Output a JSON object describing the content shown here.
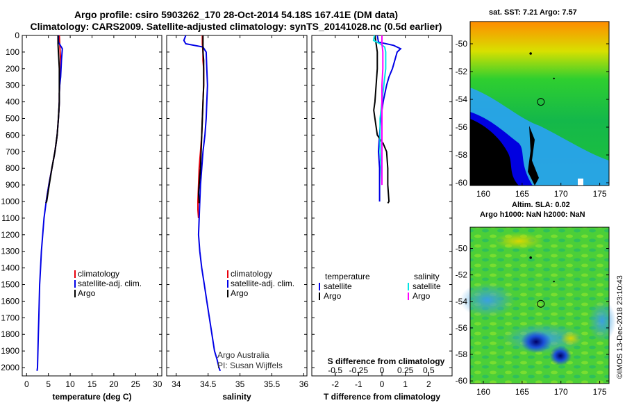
{
  "title_line1": "Argo profile: csiro 5903262_170 28-Oct-2014 54.18S 167.41E (DM data)",
  "title_line2": "Climatology: CARS2009. Satellite-adjusted climatology: synTS_20141028.nc (0.5d earlier)",
  "colors": {
    "climatology": "#e8000b",
    "satellite": "#0000e6",
    "argo": "#000000",
    "salinity_sat": "#00e5e5",
    "salinity_argo": "#ff00ff"
  },
  "chart_data": [
    {
      "type": "line",
      "xlabel": "temperature (deg C)",
      "xticks": [
        "0",
        "5",
        "10",
        "15",
        "20",
        "25",
        "30"
      ],
      "xlim": [
        -1,
        31
      ],
      "ylim": [
        0,
        2050
      ],
      "yticks": [
        "0",
        "100",
        "200",
        "300",
        "400",
        "500",
        "600",
        "700",
        "800",
        "900",
        "1000",
        "1100",
        "1200",
        "1300",
        "1400",
        "1500",
        "1600",
        "1700",
        "1800",
        "1900",
        "2000"
      ],
      "legend": [
        "climatology",
        "satellite-adj. clim.",
        "Argo"
      ],
      "series": [
        {
          "name": "climatology",
          "x": [
            7.5,
            7.6,
            7.7,
            7.8,
            7.8,
            7.7,
            7.6,
            7.5,
            7.5,
            7.4,
            7.3,
            7.0,
            6.5,
            5.8,
            5.1,
            4.5
          ],
          "y": [
            0,
            50,
            100,
            150,
            200,
            250,
            300,
            350,
            400,
            450,
            500,
            600,
            700,
            800,
            900,
            1000
          ]
        },
        {
          "name": "satellite-adj. clim.",
          "x": [
            7.3,
            7.3,
            8.2,
            8.0,
            7.9,
            7.8,
            7.6,
            7.5,
            7.5,
            7.4,
            7.3,
            7.0,
            6.5,
            5.8,
            5.1,
            4.5,
            4.0,
            3.7,
            3.4,
            3.2,
            3.0,
            2.9,
            2.8,
            2.7,
            2.6,
            2.5,
            2.4
          ],
          "y": [
            0,
            40,
            80,
            150,
            200,
            250,
            300,
            350,
            400,
            450,
            500,
            600,
            700,
            800,
            900,
            1000,
            1100,
            1200,
            1300,
            1400,
            1500,
            1600,
            1700,
            1800,
            1900,
            2000,
            2020
          ]
        },
        {
          "name": "Argo",
          "x": [
            7.2,
            7.2,
            7.3,
            7.4,
            7.5,
            7.5,
            7.5,
            7.5,
            7.5,
            7.4,
            7.3,
            7.0,
            6.5,
            5.8,
            5.2,
            4.6,
            4.4
          ],
          "y": [
            0,
            50,
            100,
            150,
            200,
            250,
            300,
            350,
            400,
            450,
            500,
            600,
            700,
            800,
            900,
            1000,
            1010
          ]
        }
      ]
    },
    {
      "type": "line",
      "xlabel": "salinity",
      "xticks": [
        "34",
        "34.5",
        "35",
        "35.5",
        "36"
      ],
      "xlim": [
        33.85,
        36.05
      ],
      "ylim": [
        0,
        2050
      ],
      "legend": [
        "climatology",
        "satellite-adj. clim.",
        "Argo"
      ],
      "note1": "Argo Australia",
      "note2": "PI: Susan Wijffels",
      "series": [
        {
          "name": "climatology",
          "x": [
            34.41,
            34.41,
            34.42,
            34.42,
            34.43,
            34.43,
            34.42,
            34.41,
            34.4,
            34.39,
            34.38,
            34.37,
            34.36,
            34.35,
            34.34,
            34.34,
            34.35
          ],
          "y": [
            0,
            50,
            100,
            150,
            200,
            300,
            400,
            500,
            600,
            650,
            700,
            750,
            800,
            900,
            1000,
            1050,
            1100
          ]
        },
        {
          "name": "satellite-adj. clim.",
          "x": [
            34.15,
            34.12,
            34.15,
            34.42,
            34.47,
            34.48,
            34.49,
            34.48,
            34.47,
            34.45,
            34.42,
            34.4,
            34.38,
            34.37,
            34.36,
            34.35,
            34.37,
            34.4,
            34.44,
            34.48,
            34.52,
            34.56,
            34.6,
            34.64,
            34.67,
            34.69
          ],
          "y": [
            0,
            30,
            50,
            70,
            100,
            200,
            300,
            400,
            500,
            600,
            700,
            800,
            900,
            1000,
            1100,
            1200,
            1300,
            1400,
            1500,
            1600,
            1700,
            1800,
            1900,
            1950,
            2000,
            2020
          ]
        },
        {
          "name": "Argo",
          "x": [
            34.42,
            34.42,
            34.42,
            34.43,
            34.43,
            34.43,
            34.42,
            34.41,
            34.4,
            34.39,
            34.38,
            34.36,
            34.35,
            34.36,
            34.36
          ],
          "y": [
            0,
            50,
            100,
            150,
            200,
            300,
            400,
            500,
            600,
            700,
            800,
            900,
            950,
            1000,
            1010
          ]
        }
      ]
    },
    {
      "type": "line",
      "xlabel": "T difference from climatology",
      "xticks": [
        "-2",
        "-1",
        "0",
        "1",
        "2"
      ],
      "xlim": [
        -3,
        3
      ],
      "sxlabel": "S difference from climatology",
      "sxticks": [
        "-0.5",
        "-0.25",
        "0",
        "0.25",
        "0.5"
      ],
      "sxlim": [
        -0.75,
        0.75
      ],
      "ylim": [
        0,
        2050
      ],
      "legend_temperature_title": "temperature",
      "legend_salinity_title": "salinity",
      "legend": [
        "satellite",
        "Argo",
        "satellite",
        "Argo"
      ],
      "series": [
        {
          "name": "temperature satellite",
          "x": [
            -0.2,
            -0.15,
            0.5,
            0.8,
            0.65,
            0.55,
            0.45,
            0.3,
            0.2,
            0.05,
            -0.05,
            -0.1,
            -0.15,
            -0.1,
            -0.1,
            -0.1
          ],
          "y": [
            0,
            40,
            60,
            80,
            100,
            150,
            200,
            250,
            300,
            400,
            500,
            600,
            700,
            800,
            900,
            1000
          ]
        },
        {
          "name": "temperature Argo",
          "x": [
            -0.3,
            -0.25,
            -0.2,
            -0.2,
            -0.2,
            -0.25,
            -0.3,
            -0.35,
            -0.3,
            -0.2,
            0.05,
            0.2,
            0.25,
            0.25,
            0.3,
            0.25
          ],
          "y": [
            0,
            50,
            100,
            150,
            200,
            300,
            400,
            450,
            500,
            600,
            650,
            700,
            800,
            900,
            1000,
            1010
          ]
        },
        {
          "name": "salinity satellite",
          "x": [
            -0.08,
            -0.09,
            -0.02,
            0.03,
            0.04,
            0.04,
            0.02,
            0.0,
            -0.02,
            -0.02,
            -0.02,
            -0.01,
            0.0
          ],
          "y": [
            0,
            30,
            50,
            70,
            100,
            200,
            300,
            400,
            500,
            600,
            700,
            800,
            900
          ]
        },
        {
          "name": "salinity Argo",
          "x": [
            0.0,
            0.0,
            0.01,
            0.01,
            0.0,
            0.0,
            0.0,
            0.0,
            0.0,
            0.0,
            0.0
          ],
          "y": [
            0,
            50,
            100,
            200,
            300,
            400,
            500,
            600,
            700,
            800,
            900
          ]
        }
      ]
    }
  ],
  "maps": [
    {
      "title": "sat. SST: 7.21 Argo: 7.57",
      "xticks": [
        "160",
        "165",
        "170",
        "175"
      ],
      "yticks": [
        "-50",
        "-52",
        "-54",
        "-56",
        "-58",
        "-60"
      ]
    },
    {
      "title1": "Altim. SLA: 0.02",
      "title2": "Argo h1000: NaN h2000: NaN",
      "xticks": [
        "160",
        "165",
        "170",
        "175"
      ],
      "yticks": [
        "-50",
        "-52",
        "-54",
        "-56",
        "-58",
        "-60"
      ]
    }
  ],
  "timestamp": "©IMOS 13-Dec-2018 23:10:43"
}
